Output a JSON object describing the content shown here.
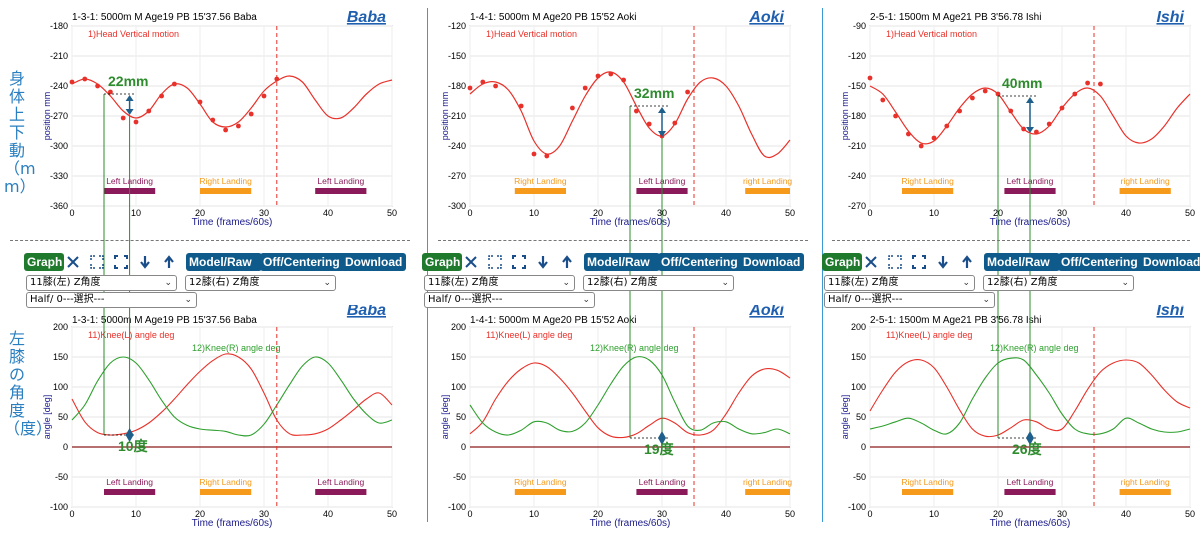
{
  "side_labels": {
    "top": "身体上下動（mm）",
    "bottom": "左膝の角度（度）"
  },
  "toolbar": {
    "graph": "Graph",
    "model_raw": "Model/Raw",
    "off_centering": "Off/Centering",
    "download": "Download",
    "select_left": "11膝(左) Z角度",
    "select_right": "12膝(右) Z角度",
    "select_half": "Half/ 0---選択---"
  },
  "icons": [
    "close-icon",
    "expand-icon",
    "fit-icon",
    "arrow-down-icon",
    "arrow-up-icon"
  ],
  "colors": {
    "series_red": "#e8312a",
    "series_green": "#2ea02e",
    "dashed_vline": "#e8312a",
    "left_landing": "#8b1a5a",
    "right_landing": "#f59a1b",
    "annotation_green": "#2e8b2e",
    "annotation_marker": "#1f5f8b",
    "name_label": "#1f5fb0"
  },
  "athletes": [
    {
      "name": "Baba",
      "header": "1-3-1: 5000m  M  Age19  PB 15'37.56  Baba",
      "top": {
        "series": "1)Head Vertical motion",
        "ylabel": "position mm",
        "xlabel": "Time (frames/60s)",
        "ylim": [
          -360,
          -180
        ],
        "yticks": [
          -180,
          -210,
          -240,
          -270,
          -300,
          -330,
          -360
        ],
        "annotation": "22mm",
        "vline": 32,
        "green_lines": [
          5,
          9
        ],
        "ann_points": {
          "a": [
            5,
            -248
          ],
          "b": [
            9,
            -270
          ]
        }
      },
      "bottom": {
        "series_left": "11)Knee(L) angle deg",
        "series_right": "12)Knee(R) angle deg",
        "ylabel": "angle [deg]",
        "xlabel": "Time (frames/60s)",
        "ylim": [
          -100,
          200
        ],
        "yticks": [
          200,
          150,
          100,
          50,
          0,
          -50,
          -100
        ],
        "annotation": "10度",
        "vline": 32,
        "green_lines": [
          5,
          9
        ],
        "ann_y": 20
      },
      "landings": [
        {
          "label": "Left Landing",
          "type": "left",
          "from": 5,
          "to": 13
        },
        {
          "label": "Right Landing",
          "type": "right",
          "from": 20,
          "to": 28
        },
        {
          "label": "Left Landing",
          "type": "left",
          "from": 38,
          "to": 46
        }
      ],
      "chart_data": {
        "type": "line",
        "head": {
          "x": [
            0,
            2,
            4,
            6,
            8,
            10,
            12,
            14,
            16,
            18,
            20,
            22,
            24,
            26,
            28,
            30,
            32,
            34,
            36,
            38,
            40,
            42,
            44,
            46,
            48,
            50
          ],
          "y": [
            -238,
            -233,
            -238,
            -250,
            -265,
            -272,
            -265,
            -248,
            -238,
            -242,
            -258,
            -276,
            -281,
            -276,
            -262,
            -245,
            -235,
            -230,
            -236,
            -254,
            -270,
            -272,
            -262,
            -248,
            -238,
            -234
          ]
        },
        "head_points": {
          "x": [
            0,
            2,
            4,
            6,
            8,
            10,
            12,
            14,
            16,
            20,
            22,
            24,
            26,
            28,
            30,
            32
          ],
          "y": [
            -236,
            -233,
            -240,
            -246,
            -272,
            -276,
            -265,
            -250,
            -238,
            -256,
            -274,
            -284,
            -280,
            -268,
            -250,
            -233
          ]
        },
        "knee_left": {
          "x": [
            0,
            2,
            4,
            6,
            8,
            10,
            12,
            14,
            16,
            18,
            20,
            22,
            24,
            26,
            28,
            30,
            32,
            34,
            36,
            38,
            40,
            42,
            44,
            46,
            48,
            50
          ],
          "y": [
            80,
            42,
            24,
            20,
            22,
            28,
            40,
            58,
            80,
            104,
            126,
            144,
            155,
            150,
            130,
            90,
            45,
            22,
            20,
            22,
            30,
            45,
            62,
            80,
            90,
            70
          ]
        },
        "knee_right": {
          "x": [
            0,
            2,
            4,
            6,
            8,
            10,
            12,
            14,
            16,
            18,
            20,
            22,
            24,
            26,
            28,
            30,
            32,
            34,
            36,
            38,
            40,
            42,
            44,
            46,
            48,
            50
          ],
          "y": [
            45,
            70,
            110,
            140,
            150,
            140,
            112,
            78,
            50,
            36,
            30,
            28,
            26,
            20,
            20,
            38,
            70,
            104,
            135,
            150,
            140,
            112,
            80,
            55,
            40,
            45
          ]
        }
      }
    },
    {
      "name": "Aoki",
      "header": "1-4-1: 5000m  M  Age20  PB 15'52  Aoki",
      "top": {
        "series": "1)Head Vertical motion",
        "ylabel": "position mm",
        "xlabel": "Time (frames/60s)",
        "ylim": [
          -300,
          -120
        ],
        "yticks": [
          -120,
          -150,
          -180,
          -210,
          -240,
          -270,
          -300
        ],
        "annotation": "32mm",
        "vline": 35,
        "green_lines": [
          25,
          30
        ],
        "ann_points": {
          "a": [
            25,
            -200
          ],
          "b": [
            30,
            -232
          ]
        }
      },
      "bottom": {
        "series_left": "11)Knee(L) angle deg",
        "series_right": "12)Knee(R) angle deg",
        "ylabel": "angle [deg]",
        "xlabel": "Time (frames/60s)",
        "ylim": [
          -100,
          200
        ],
        "yticks": [
          200,
          150,
          100,
          50,
          0,
          -50,
          -100
        ],
        "annotation": "19度",
        "vline": 35,
        "green_lines": [
          25,
          30
        ],
        "ann_y": 15
      },
      "landings": [
        {
          "label": "Right Landing",
          "type": "right",
          "from": 7,
          "to": 15
        },
        {
          "label": "Left Landing",
          "type": "left",
          "from": 26,
          "to": 34
        },
        {
          "label": "right Landing",
          "type": "right",
          "from": 43,
          "to": 50
        }
      ],
      "chart_data": {
        "type": "line",
        "head": {
          "x": [
            0,
            2,
            4,
            6,
            8,
            10,
            12,
            14,
            16,
            18,
            20,
            22,
            24,
            26,
            28,
            30,
            32,
            34,
            36,
            38,
            40,
            42,
            44,
            46,
            48,
            50
          ],
          "y": [
            -188,
            -178,
            -176,
            -184,
            -205,
            -235,
            -248,
            -240,
            -215,
            -190,
            -172,
            -166,
            -176,
            -200,
            -222,
            -230,
            -218,
            -193,
            -176,
            -172,
            -180,
            -200,
            -228,
            -250,
            -248,
            -234
          ]
        },
        "head_points": {
          "x": [
            0,
            2,
            4,
            8,
            10,
            12,
            16,
            18,
            20,
            22,
            24,
            26,
            28,
            30,
            32,
            34
          ],
          "y": [
            -182,
            -176,
            -180,
            -200,
            -248,
            -250,
            -202,
            -182,
            -170,
            -168,
            -174,
            -205,
            -218,
            -230,
            -217,
            -186
          ]
        },
        "knee_left": {
          "x": [
            0,
            2,
            4,
            6,
            8,
            10,
            12,
            14,
            16,
            18,
            20,
            22,
            24,
            26,
            28,
            30,
            32,
            34,
            36,
            38,
            40,
            42,
            44,
            46,
            48,
            50
          ],
          "y": [
            22,
            42,
            80,
            110,
            130,
            140,
            134,
            115,
            90,
            60,
            32,
            18,
            16,
            22,
            36,
            48,
            40,
            24,
            20,
            28,
            55,
            90,
            118,
            130,
            128,
            115
          ]
        },
        "knee_right": {
          "x": [
            0,
            2,
            4,
            6,
            8,
            10,
            12,
            14,
            16,
            18,
            20,
            22,
            24,
            26,
            28,
            30,
            32,
            34,
            36,
            38,
            40,
            42,
            44,
            46,
            48,
            50
          ],
          "y": [
            70,
            40,
            25,
            20,
            28,
            42,
            40,
            28,
            26,
            40,
            70,
            105,
            135,
            150,
            145,
            120,
            75,
            35,
            28,
            40,
            42,
            30,
            22,
            24,
            30,
            22
          ]
        }
      }
    },
    {
      "name": "Ishi",
      "header": "2-5-1: 1500m  M  Age21  PB 3'56.78  Ishi",
      "top": {
        "series": "1)Head Vertical motion",
        "ylabel": "position mm",
        "xlabel": "Time (frames/60s)",
        "ylim": [
          -270,
          -90
        ],
        "yticks": [
          -90,
          -120,
          -150,
          -180,
          -210,
          -240,
          -270
        ],
        "annotation": "40mm",
        "vline": 35,
        "green_lines": [
          20,
          25
        ],
        "ann_points": {
          "a": [
            20,
            -160
          ],
          "b": [
            25,
            -198
          ]
        }
      },
      "bottom": {
        "series_left": "11)Knee(L) angle deg",
        "series_right": "12)Knee(R) angle deg",
        "ylabel": "angle [deg]",
        "xlabel": "Time (frames/60s)",
        "ylim": [
          -100,
          200
        ],
        "yticks": [
          200,
          150,
          100,
          50,
          0,
          -50,
          -100
        ],
        "annotation": "26度",
        "vline": 35,
        "green_lines": [
          20,
          25
        ],
        "ann_y": 15
      },
      "landings": [
        {
          "label": "Right Landing",
          "type": "right",
          "from": 5,
          "to": 13
        },
        {
          "label": "Left Landing",
          "type": "left",
          "from": 21,
          "to": 29
        },
        {
          "label": "right Landing",
          "type": "right",
          "from": 39,
          "to": 47
        }
      ],
      "chart_data": {
        "type": "line",
        "head": {
          "x": [
            0,
            2,
            4,
            6,
            8,
            10,
            12,
            14,
            16,
            18,
            20,
            22,
            24,
            26,
            28,
            30,
            32,
            34,
            36,
            38,
            40,
            42,
            44,
            46,
            48,
            50
          ],
          "y": [
            -150,
            -158,
            -176,
            -195,
            -207,
            -205,
            -190,
            -172,
            -158,
            -152,
            -158,
            -176,
            -193,
            -198,
            -190,
            -172,
            -158,
            -152,
            -160,
            -180,
            -200,
            -207,
            -203,
            -190,
            -172,
            -158
          ]
        },
        "head_points": {
          "x": [
            0,
            2,
            4,
            6,
            8,
            10,
            12,
            14,
            16,
            18,
            20,
            22,
            24,
            26,
            28,
            30,
            32,
            34,
            36
          ],
          "y": [
            -142,
            -164,
            -180,
            -198,
            -210,
            -202,
            -190,
            -175,
            -162,
            -155,
            -158,
            -175,
            -193,
            -196,
            -188,
            -172,
            -158,
            -147,
            -148
          ]
        },
        "knee_left": {
          "x": [
            0,
            2,
            4,
            6,
            8,
            10,
            12,
            14,
            16,
            18,
            20,
            22,
            24,
            26,
            28,
            30,
            32,
            34,
            36,
            38,
            40,
            42,
            44,
            46,
            48,
            50
          ],
          "y": [
            60,
            95,
            125,
            142,
            145,
            132,
            100,
            62,
            30,
            18,
            20,
            32,
            45,
            42,
            30,
            30,
            60,
            96,
            125,
            140,
            145,
            140,
            120,
            95,
            75,
            65
          ]
        },
        "knee_right": {
          "x": [
            0,
            2,
            4,
            6,
            8,
            10,
            12,
            14,
            16,
            18,
            20,
            22,
            24,
            26,
            28,
            30,
            32,
            34,
            36,
            38,
            40,
            42,
            44,
            46,
            48,
            50
          ],
          "y": [
            30,
            35,
            42,
            48,
            40,
            28,
            22,
            40,
            80,
            115,
            140,
            148,
            145,
            120,
            90,
            55,
            30,
            22,
            22,
            30,
            48,
            40,
            30,
            25,
            25,
            30
          ]
        }
      }
    }
  ]
}
